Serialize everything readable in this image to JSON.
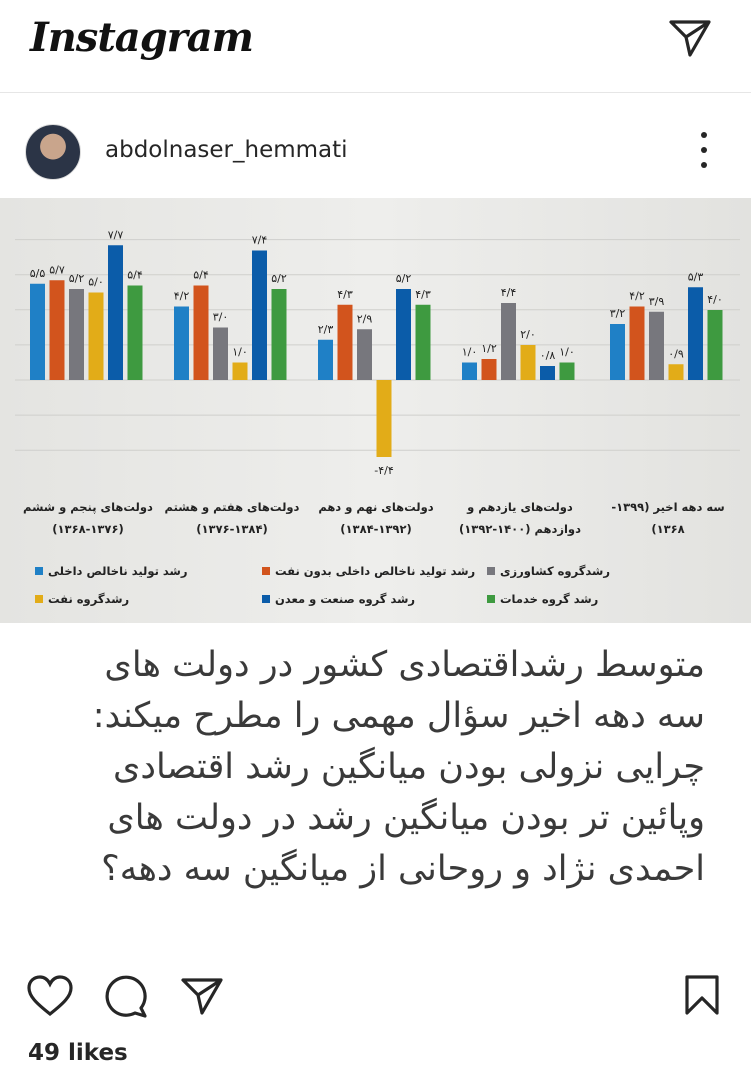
{
  "app": {
    "logo": "Instagram"
  },
  "icons": {
    "direct": "paper-plane-icon",
    "more": "more-vertical-icon",
    "like": "heart-icon",
    "comment": "comment-bubble-icon",
    "share": "paper-plane-icon",
    "save": "bookmark-icon"
  },
  "post": {
    "username": "abdolnaser_hemmati",
    "likes": "49 likes",
    "caption_lines": [
      "متوسط رشداقتصادی کشور در دولت های",
      "سه دهه اخیر سؤال مهمی را مطرح میکند:",
      "چرایی نزولی بودن میانگین رشد اقتصادی",
      "وپائین تر بودن میانگین رشد در دولت های",
      "احمدی نژاد و روحانی از میانگین سه دهه؟"
    ]
  },
  "chart_data": {
    "type": "bar",
    "categories": [
      [
        "دولت‌های پنجم و ششم",
        "(۱۳۶۸-۱۳۷۶)"
      ],
      [
        "دولت‌های هفتم و هشتم",
        "(۱۳۷۶-۱۳۸۴)"
      ],
      [
        "دولت‌های نهم و دهم",
        "(۱۳۸۴-۱۳۹۲)"
      ],
      [
        "دولت‌های یازدهم و",
        "دوازدهم (۱۴۰۰-۱۳۹۲)"
      ],
      [
        "سه دهه اخیر (۱۳۹۹-",
        "۱۳۶۸)"
      ]
    ],
    "series": [
      {
        "name": "رشد تولید ناخالص داخلی",
        "color": "#1f80c6",
        "values": [
          5.5,
          4.2,
          2.3,
          1.0,
          3.2
        ]
      },
      {
        "name": "رشد تولید ناخالص داخلی بدون نفت",
        "color": "#d2541d",
        "values": [
          5.7,
          5.4,
          4.3,
          1.2,
          4.2
        ]
      },
      {
        "name": "رشدگروه کشاورزی",
        "color": "#77777d",
        "values": [
          5.2,
          3.0,
          2.9,
          4.4,
          3.9
        ]
      },
      {
        "name": "رشدگروه نفت",
        "color": "#e2ac18",
        "values": [
          5.0,
          1.0,
          -4.4,
          2.0,
          0.9
        ]
      },
      {
        "name": "رشد گروه صنعت و معدن",
        "color": "#0b5ca9",
        "values": [
          7.7,
          7.4,
          5.2,
          0.8,
          5.3
        ]
      },
      {
        "name": "رشد گروه خدمات",
        "color": "#3e9a40",
        "values": [
          5.4,
          5.2,
          4.3,
          1.0,
          4.0
        ]
      }
    ],
    "grid": true,
    "legend": "bottom"
  }
}
